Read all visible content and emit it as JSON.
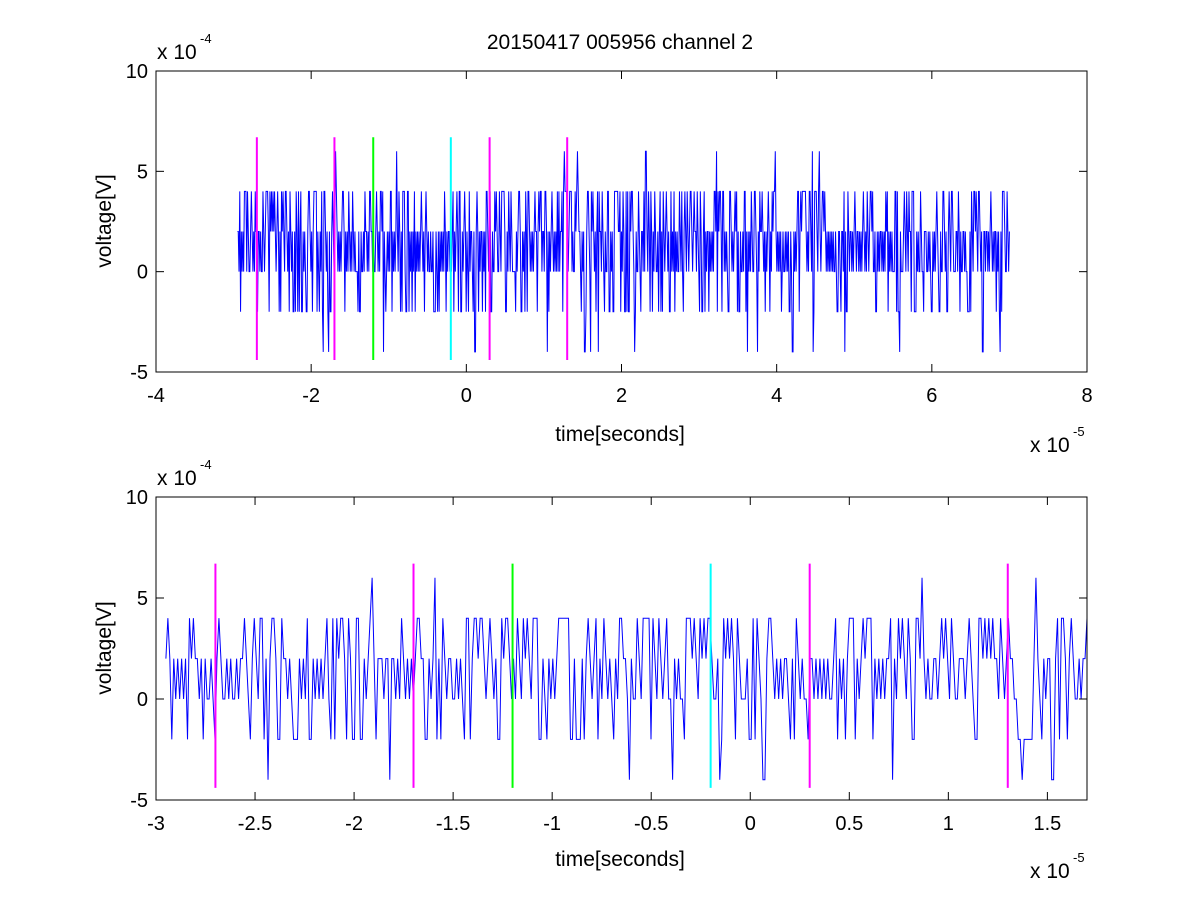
{
  "chart_data": [
    {
      "type": "line",
      "title": "20150417 005956 channel 2",
      "xlabel": "time[seconds]",
      "ylabel": "voltage[V]",
      "x_multiplier_label": "x 10",
      "x_multiplier_exp": "-5",
      "y_multiplier_label": "x 10",
      "y_multiplier_exp": "-4",
      "xlim": [
        -4,
        8
      ],
      "ylim": [
        -5,
        10
      ],
      "xticks": [
        -4,
        -2,
        0,
        2,
        4,
        6,
        8
      ],
      "xtick_labels": [
        "-4",
        "-2",
        "0",
        "2",
        "4",
        "6",
        "8"
      ],
      "yticks": [
        -5,
        0,
        5,
        10
      ],
      "ytick_labels": [
        "-5",
        "0",
        "5",
        "10"
      ],
      "series": [
        {
          "color": "#0000ff",
          "x_range": [
            -2.95,
            7.0
          ],
          "levels": [
            -4,
            -2,
            0,
            2,
            4,
            6
          ],
          "baseline": 2,
          "approx_points": 1000
        }
      ],
      "markers": [
        {
          "x": -2.7,
          "color": "#ff00ff",
          "y_range": [
            -4.4,
            6.7
          ]
        },
        {
          "x": -1.7,
          "color": "#ff00ff",
          "y_range": [
            -4.4,
            6.7
          ]
        },
        {
          "x": -1.2,
          "color": "#00ff00",
          "y_range": [
            -4.4,
            6.7
          ]
        },
        {
          "x": -0.2,
          "color": "#00ffff",
          "y_range": [
            -4.4,
            6.7
          ]
        },
        {
          "x": 0.3,
          "color": "#ff00ff",
          "y_range": [
            -4.4,
            6.7
          ]
        },
        {
          "x": 1.3,
          "color": "#ff00ff",
          "y_range": [
            -4.4,
            6.7
          ]
        }
      ],
      "grid": false
    },
    {
      "type": "line",
      "title": "",
      "xlabel": "time[seconds]",
      "ylabel": "voltage[V]",
      "x_multiplier_label": "x 10",
      "x_multiplier_exp": "-5",
      "y_multiplier_label": "x 10",
      "y_multiplier_exp": "-4",
      "xlim": [
        -3.0,
        1.7
      ],
      "ylim": [
        -5,
        10
      ],
      "xticks": [
        -3,
        -2.5,
        -2,
        -1.5,
        -1,
        -0.5,
        0,
        0.5,
        1,
        1.5
      ],
      "xtick_labels": [
        "-3",
        "-2.5",
        "-2",
        "-1.5",
        "-1",
        "-0.5",
        "0",
        "0.5",
        "1",
        "1.5"
      ],
      "yticks": [
        -5,
        0,
        5,
        10
      ],
      "ytick_labels": [
        "-5",
        "0",
        "5",
        "10"
      ],
      "series": [
        {
          "color": "#0000ff",
          "x_range": [
            -2.95,
            1.7
          ],
          "levels": [
            -4,
            -2,
            0,
            2,
            4,
            6
          ],
          "baseline": 2,
          "approx_points": 470
        }
      ],
      "markers": [
        {
          "x": -2.7,
          "color": "#ff00ff",
          "y_range": [
            -4.4,
            6.7
          ]
        },
        {
          "x": -1.7,
          "color": "#ff00ff",
          "y_range": [
            -4.4,
            6.7
          ]
        },
        {
          "x": -1.2,
          "color": "#00ff00",
          "y_range": [
            -4.4,
            6.7
          ]
        },
        {
          "x": -0.2,
          "color": "#00ffff",
          "y_range": [
            -4.4,
            6.7
          ]
        },
        {
          "x": 0.3,
          "color": "#ff00ff",
          "y_range": [
            -4.4,
            6.7
          ]
        },
        {
          "x": 1.3,
          "color": "#ff00ff",
          "y_range": [
            -4.4,
            6.7
          ]
        }
      ],
      "grid": false
    }
  ]
}
